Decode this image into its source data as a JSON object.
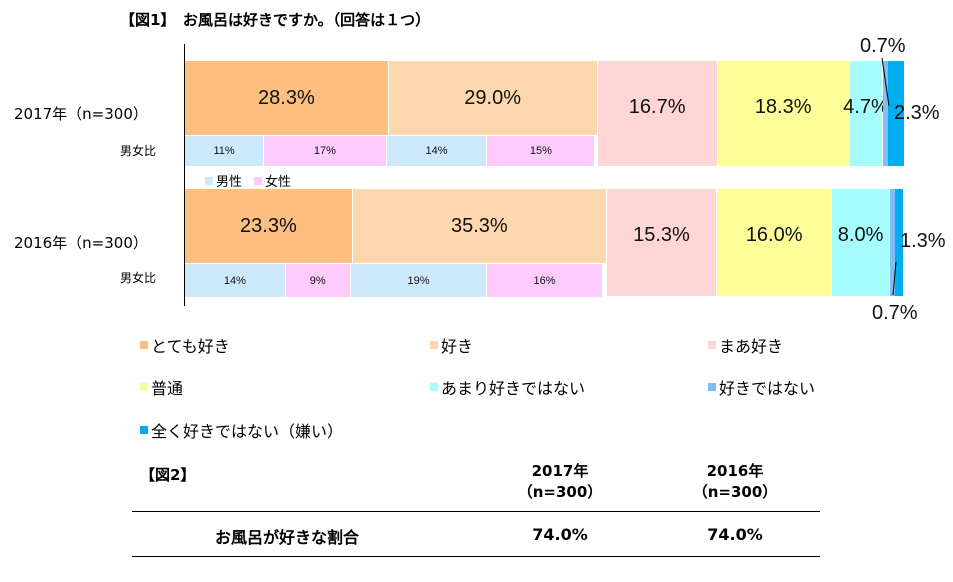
{
  "title": "【図1】　お風呂は好きですか。（回答は１つ）",
  "chart_data": {
    "type": "bar",
    "orientation": "horizontal-stacked-100",
    "title": "【図1】　お風呂は好きですか。（回答は１つ）",
    "categories": [
      "2017年（n=300）",
      "2016年（n=300）"
    ],
    "series": [
      {
        "name": "とても好き",
        "color": "#fcbf80",
        "values": [
          28.3,
          23.3
        ],
        "labels": [
          "28.3%",
          "23.3%"
        ]
      },
      {
        "name": "好き",
        "color": "#fdd7ae",
        "values": [
          29.0,
          35.3
        ],
        "labels": [
          "29.0%",
          "35.3%"
        ]
      },
      {
        "name": "まあ好き",
        "color": "#fed6d6",
        "values": [
          16.7,
          15.3
        ],
        "labels": [
          "16.7%",
          "15.3%"
        ]
      },
      {
        "name": "普通",
        "color": "#fdfd99",
        "values": [
          18.3,
          16.0
        ],
        "labels": [
          "18.3%",
          "16.0%"
        ]
      },
      {
        "name": "あまり好きではない",
        "color": "#a6fdfd",
        "values": [
          4.7,
          8.0
        ],
        "labels": [
          "4.7%",
          "8.0%"
        ]
      },
      {
        "name": "好きではない",
        "color": "#80bcf6",
        "values": [
          0.7,
          0.7
        ],
        "labels": [
          "0.7%",
          "0.7%"
        ]
      },
      {
        "name": "全く好きではない（嫌い）",
        "color": "#00aeef",
        "values": [
          2.3,
          1.3
        ],
        "labels": [
          "2.3%",
          "1.3%"
        ]
      }
    ],
    "sex_ratio": {
      "label": "男女比",
      "legend": [
        {
          "name": "男性",
          "color": "#cdeafc"
        },
        {
          "name": "女性",
          "color": "#fecbfd"
        }
      ],
      "rows": [
        {
          "values": [
            11,
            17,
            14,
            15
          ],
          "labels": [
            "11%",
            "17%",
            "14%",
            "15%"
          ]
        },
        {
          "values": [
            14,
            9,
            19,
            16
          ],
          "labels": [
            "14%",
            "9%",
            "19%",
            "16%"
          ]
        }
      ]
    },
    "xlim": [
      0,
      100
    ]
  },
  "table": {
    "title": "【図2】",
    "headers": [
      {
        "year": "2017年",
        "n": "（n=300）"
      },
      {
        "year": "2016年",
        "n": "（n=300）"
      }
    ],
    "row_label": "お風呂が好きな割合",
    "values": [
      "74.0%",
      "74.0%"
    ]
  }
}
